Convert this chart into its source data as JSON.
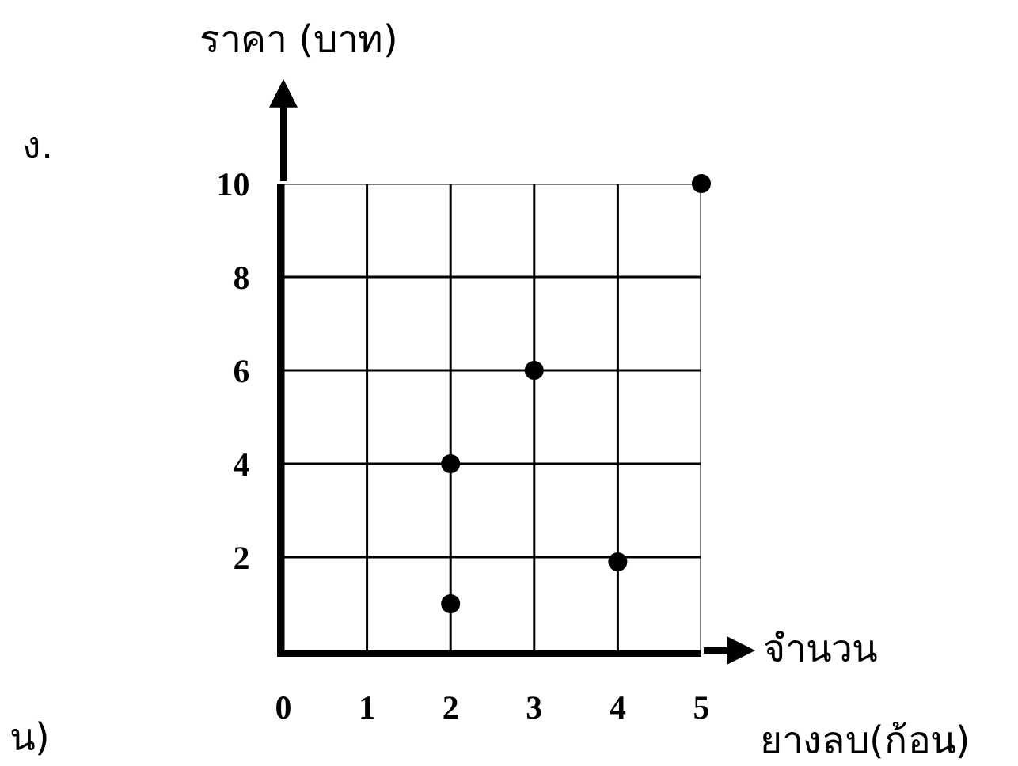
{
  "chart_data": {
    "type": "scatter",
    "xlabel": "จำนวน\nยางลบ(ก้อน)",
    "ylabel": "ราคา (บาท)",
    "x": [
      2,
      2,
      3,
      4,
      5
    ],
    "series": [
      {
        "color": "#000000",
        "values": [
          4,
          1,
          6,
          1.9,
          10
        ]
      }
    ],
    "xlim": [
      0,
      5
    ],
    "ylim": [
      0,
      10
    ],
    "xticks": [
      0,
      1,
      2,
      3,
      4,
      5
    ],
    "yticks": [
      2,
      4,
      6,
      8,
      10
    ],
    "grid": true,
    "marker": "circle",
    "annotations": [
      "ง.",
      "น)"
    ]
  }
}
